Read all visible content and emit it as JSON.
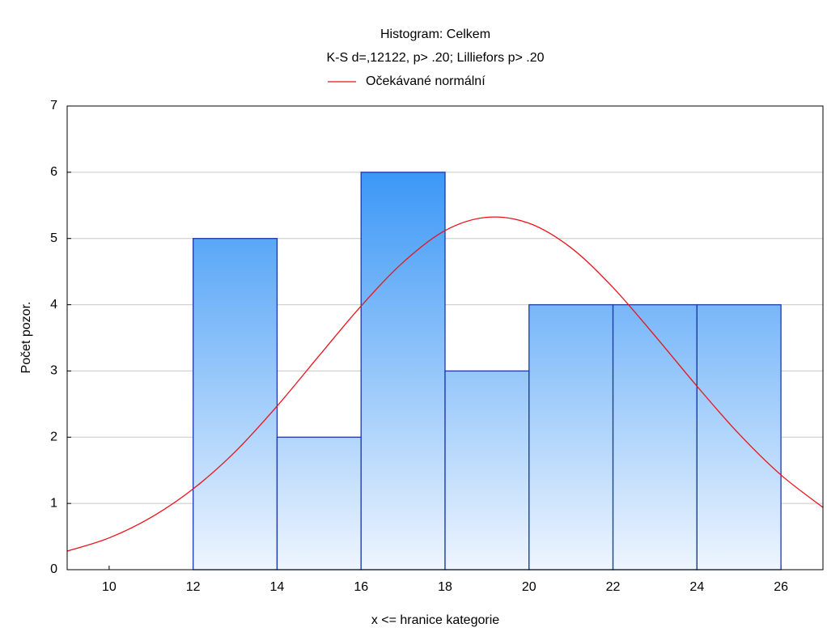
{
  "chart_data": {
    "type": "histogram",
    "title": "Histogram: Celkem",
    "subtitle": "K-S d=,12122, p> .20; Lilliefors p> .20",
    "xlabel": "x <= hranice kategorie",
    "ylabel": "Počet pozor.",
    "bins": [
      12,
      14,
      16,
      18,
      20,
      22,
      24,
      26
    ],
    "values": [
      5,
      2,
      6,
      3,
      4,
      4,
      4
    ],
    "color": "#1e88f5",
    "edge_color": "#1a3aa8",
    "xlim": [
      9,
      27
    ],
    "ylim": [
      0,
      7
    ],
    "xticks": [
      10,
      12,
      14,
      16,
      18,
      20,
      22,
      24,
      26
    ],
    "yticks": [
      0,
      1,
      2,
      3,
      4,
      5,
      6,
      7
    ],
    "grid": true,
    "legend": "top",
    "lines": [
      {
        "name": "Očekávané normální",
        "color": "#e8131b",
        "x": [
          9,
          10,
          11,
          12,
          13,
          14,
          15,
          16,
          17,
          18,
          19,
          20,
          21,
          22,
          23,
          24,
          25,
          26,
          27
        ],
        "values": [
          0.28,
          0.48,
          0.79,
          1.22,
          1.78,
          2.47,
          3.23,
          3.98,
          4.64,
          5.12,
          5.32,
          5.23,
          4.86,
          4.26,
          3.53,
          2.77,
          2.05,
          1.43,
          0.94
        ]
      }
    ]
  }
}
